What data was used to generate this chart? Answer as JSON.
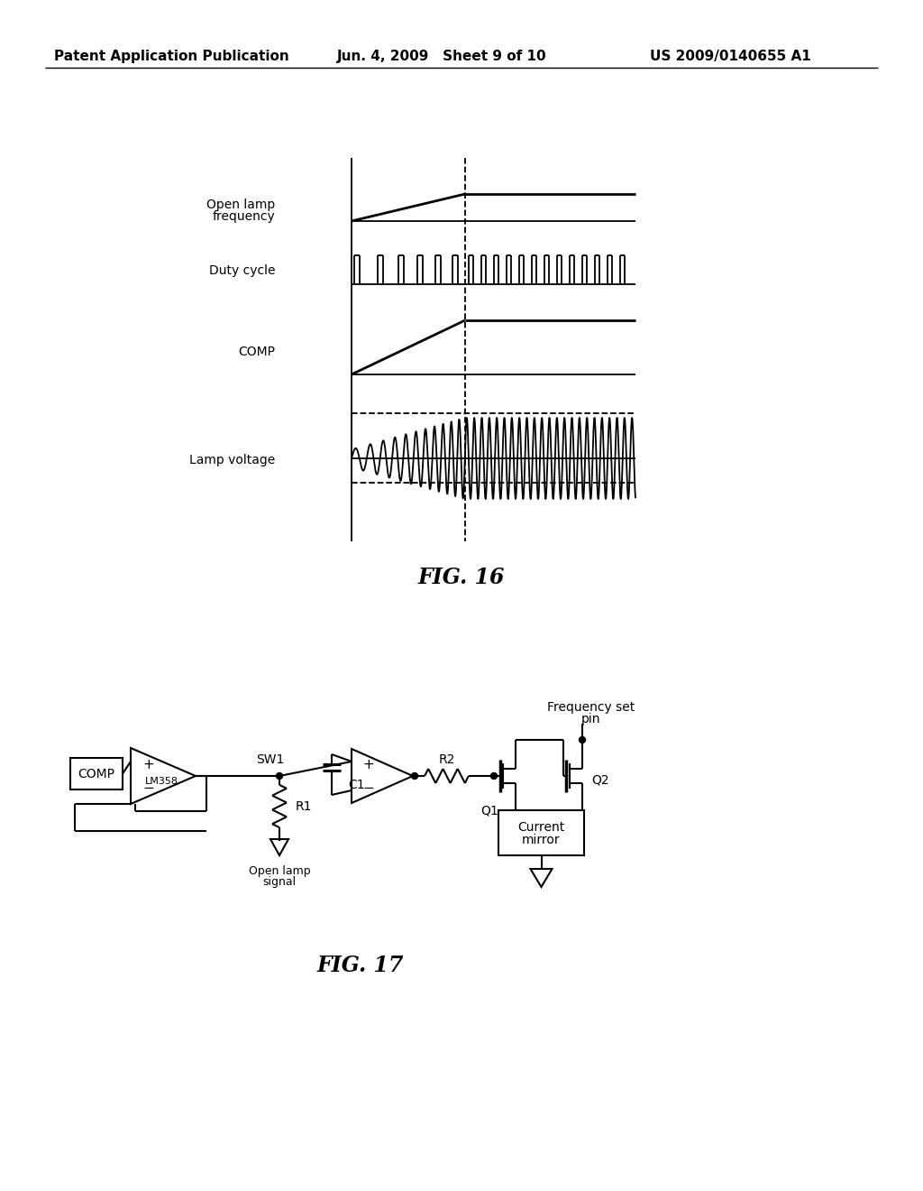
{
  "header_left": "Patent Application Publication",
  "header_mid": "Jun. 4, 2009   Sheet 9 of 10",
  "header_right": "US 2009/0140655 A1",
  "fig16_title": "FIG. 16",
  "fig17_title": "FIG. 17",
  "background_color": "#ffffff",
  "line_color": "#000000"
}
